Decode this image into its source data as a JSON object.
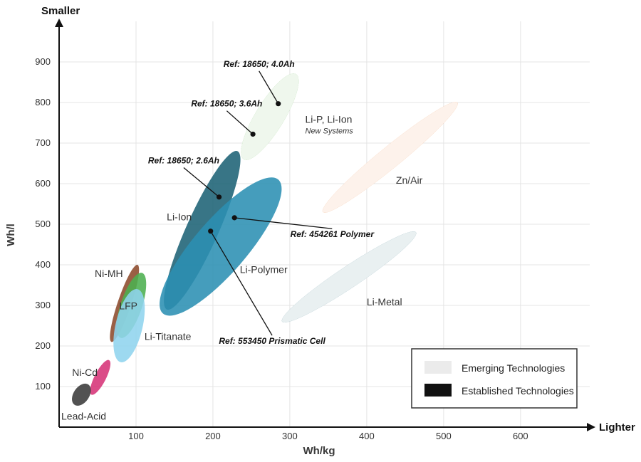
{
  "chart_data": {
    "type": "scatter",
    "title": "",
    "xlabel": "Wh/kg",
    "ylabel": "Wh/l",
    "x_direction_label": "Lighter",
    "y_direction_label": "Smaller",
    "xlim": [
      0,
      690
    ],
    "ylim": [
      0,
      1000
    ],
    "x_ticks": [
      100,
      200,
      300,
      400,
      500,
      600
    ],
    "y_ticks": [
      100,
      200,
      300,
      400,
      500,
      600,
      700,
      800,
      900
    ],
    "grid": true,
    "regions": [
      {
        "name": "Li-Ion",
        "category": "established",
        "color": "#1d6275",
        "center": [
          186,
          485
        ],
        "axis_start": [
          140,
          290
        ],
        "axis_end": [
          232,
          680
        ],
        "width": 45,
        "label": "Li-Ion",
        "label_pos": [
          140,
          510
        ],
        "label_anchor": "start"
      },
      {
        "name": "Li-Polymer",
        "category": "established",
        "color": "#2b8fb3",
        "center": [
          210,
          445
        ],
        "axis_start": [
          135,
          280
        ],
        "axis_end": [
          285,
          610
        ],
        "width": 74,
        "label": "Li-Polymer",
        "label_pos": [
          235,
          380
        ],
        "label_anchor": "start"
      },
      {
        "name": "Li-P, Li-Ion New Systems",
        "category": "emerging",
        "color": "#5aaf47",
        "center": [
          274,
          765
        ],
        "axis_start": [
          240,
          660
        ],
        "axis_end": [
          308,
          870
        ],
        "width": 40,
        "label": "Li-P, Li-Ion",
        "sublabel": "New Systems",
        "label_pos": [
          320,
          750
        ],
        "label_anchor": "start"
      },
      {
        "name": "Zn/Air",
        "category": "emerging",
        "color": "#e77a2e",
        "center": [
          430,
          665
        ],
        "axis_start": [
          343,
          530
        ],
        "axis_end": [
          518,
          800
        ],
        "width": 30,
        "label": "Zn/Air",
        "label_pos": [
          438,
          600
        ],
        "label_anchor": "start"
      },
      {
        "name": "Li-Metal",
        "category": "emerging",
        "color": "#1d6275",
        "center": [
          357,
          365
        ],
        "axis_start": [
          290,
          260
        ],
        "axis_end": [
          464,
          480
        ],
        "width": 30,
        "label": "Li-Metal",
        "label_pos": [
          400,
          300
        ],
        "label_anchor": "start"
      },
      {
        "name": "Ni-MH",
        "category": "established",
        "color": "#8c4a2b",
        "center": [
          85,
          305
        ],
        "axis_start": [
          68,
          210
        ],
        "axis_end": [
          102,
          400
        ],
        "width": 19,
        "label": "Ni-MH",
        "label_pos": [
          83,
          370
        ],
        "label_anchor": "end"
      },
      {
        "name": "LFP",
        "category": "established",
        "color": "#4caf50",
        "center": [
          94,
          300
        ],
        "axis_start": [
          80,
          220
        ],
        "axis_end": [
          108,
          380
        ],
        "width": 30,
        "label": "LFP",
        "label_pos": [
          90,
          290
        ],
        "label_anchor": "middle"
      },
      {
        "name": "Li-Titanate",
        "category": "established",
        "color": "#8fd4ee",
        "center": [
          90,
          240
        ],
        "axis_start": [
          80,
          160
        ],
        "axis_end": [
          102,
          340
        ],
        "width": 38,
        "label": "Li-Titanate",
        "label_pos": [
          111,
          215
        ],
        "label_anchor": "start"
      },
      {
        "name": "Ni-Cd",
        "category": "established",
        "color": "#d63377",
        "center": [
          53,
          117
        ],
        "axis_start": [
          42,
          80
        ],
        "axis_end": [
          65,
          165
        ],
        "width": 16,
        "label": "Ni-Cd",
        "label_pos": [
          50,
          126
        ],
        "label_anchor": "end"
      },
      {
        "name": "Lead-Acid",
        "category": "established",
        "color": "#3a3a3a",
        "center": [
          28,
          82
        ],
        "axis_start": [
          20,
          55
        ],
        "axis_end": [
          38,
          105
        ],
        "width": 22,
        "label": "Lead-Acid",
        "label_pos": [
          32,
          18
        ],
        "label_anchor": "middle"
      }
    ],
    "reference_points": [
      {
        "label": "Ref: 18650; 4.0Ah",
        "x": 285,
        "y": 797,
        "label_pos": [
          260,
          888
        ],
        "label_anchor": "middle"
      },
      {
        "label": "Ref: 18650; 3.6Ah",
        "x": 252,
        "y": 722,
        "label_pos": [
          218,
          790
        ],
        "label_anchor": "middle"
      },
      {
        "label": "Ref: 18650; 2.6Ah",
        "x": 208,
        "y": 567,
        "label_pos": [
          162,
          650
        ],
        "label_anchor": "middle"
      },
      {
        "label": "Ref: 454261 Polymer",
        "x": 228,
        "y": 516,
        "label_pos": [
          355,
          468
        ],
        "label_anchor": "middle"
      },
      {
        "label": "Ref: 553450 Prismatic Cell",
        "x": 197,
        "y": 483,
        "label_pos": [
          277,
          205
        ],
        "label_anchor": "middle"
      }
    ],
    "legend": {
      "position": "bottom-right",
      "items": [
        {
          "label": "Emerging Technologies",
          "style": "hatched"
        },
        {
          "label": "Established Technologies",
          "style": "solid"
        }
      ]
    }
  }
}
